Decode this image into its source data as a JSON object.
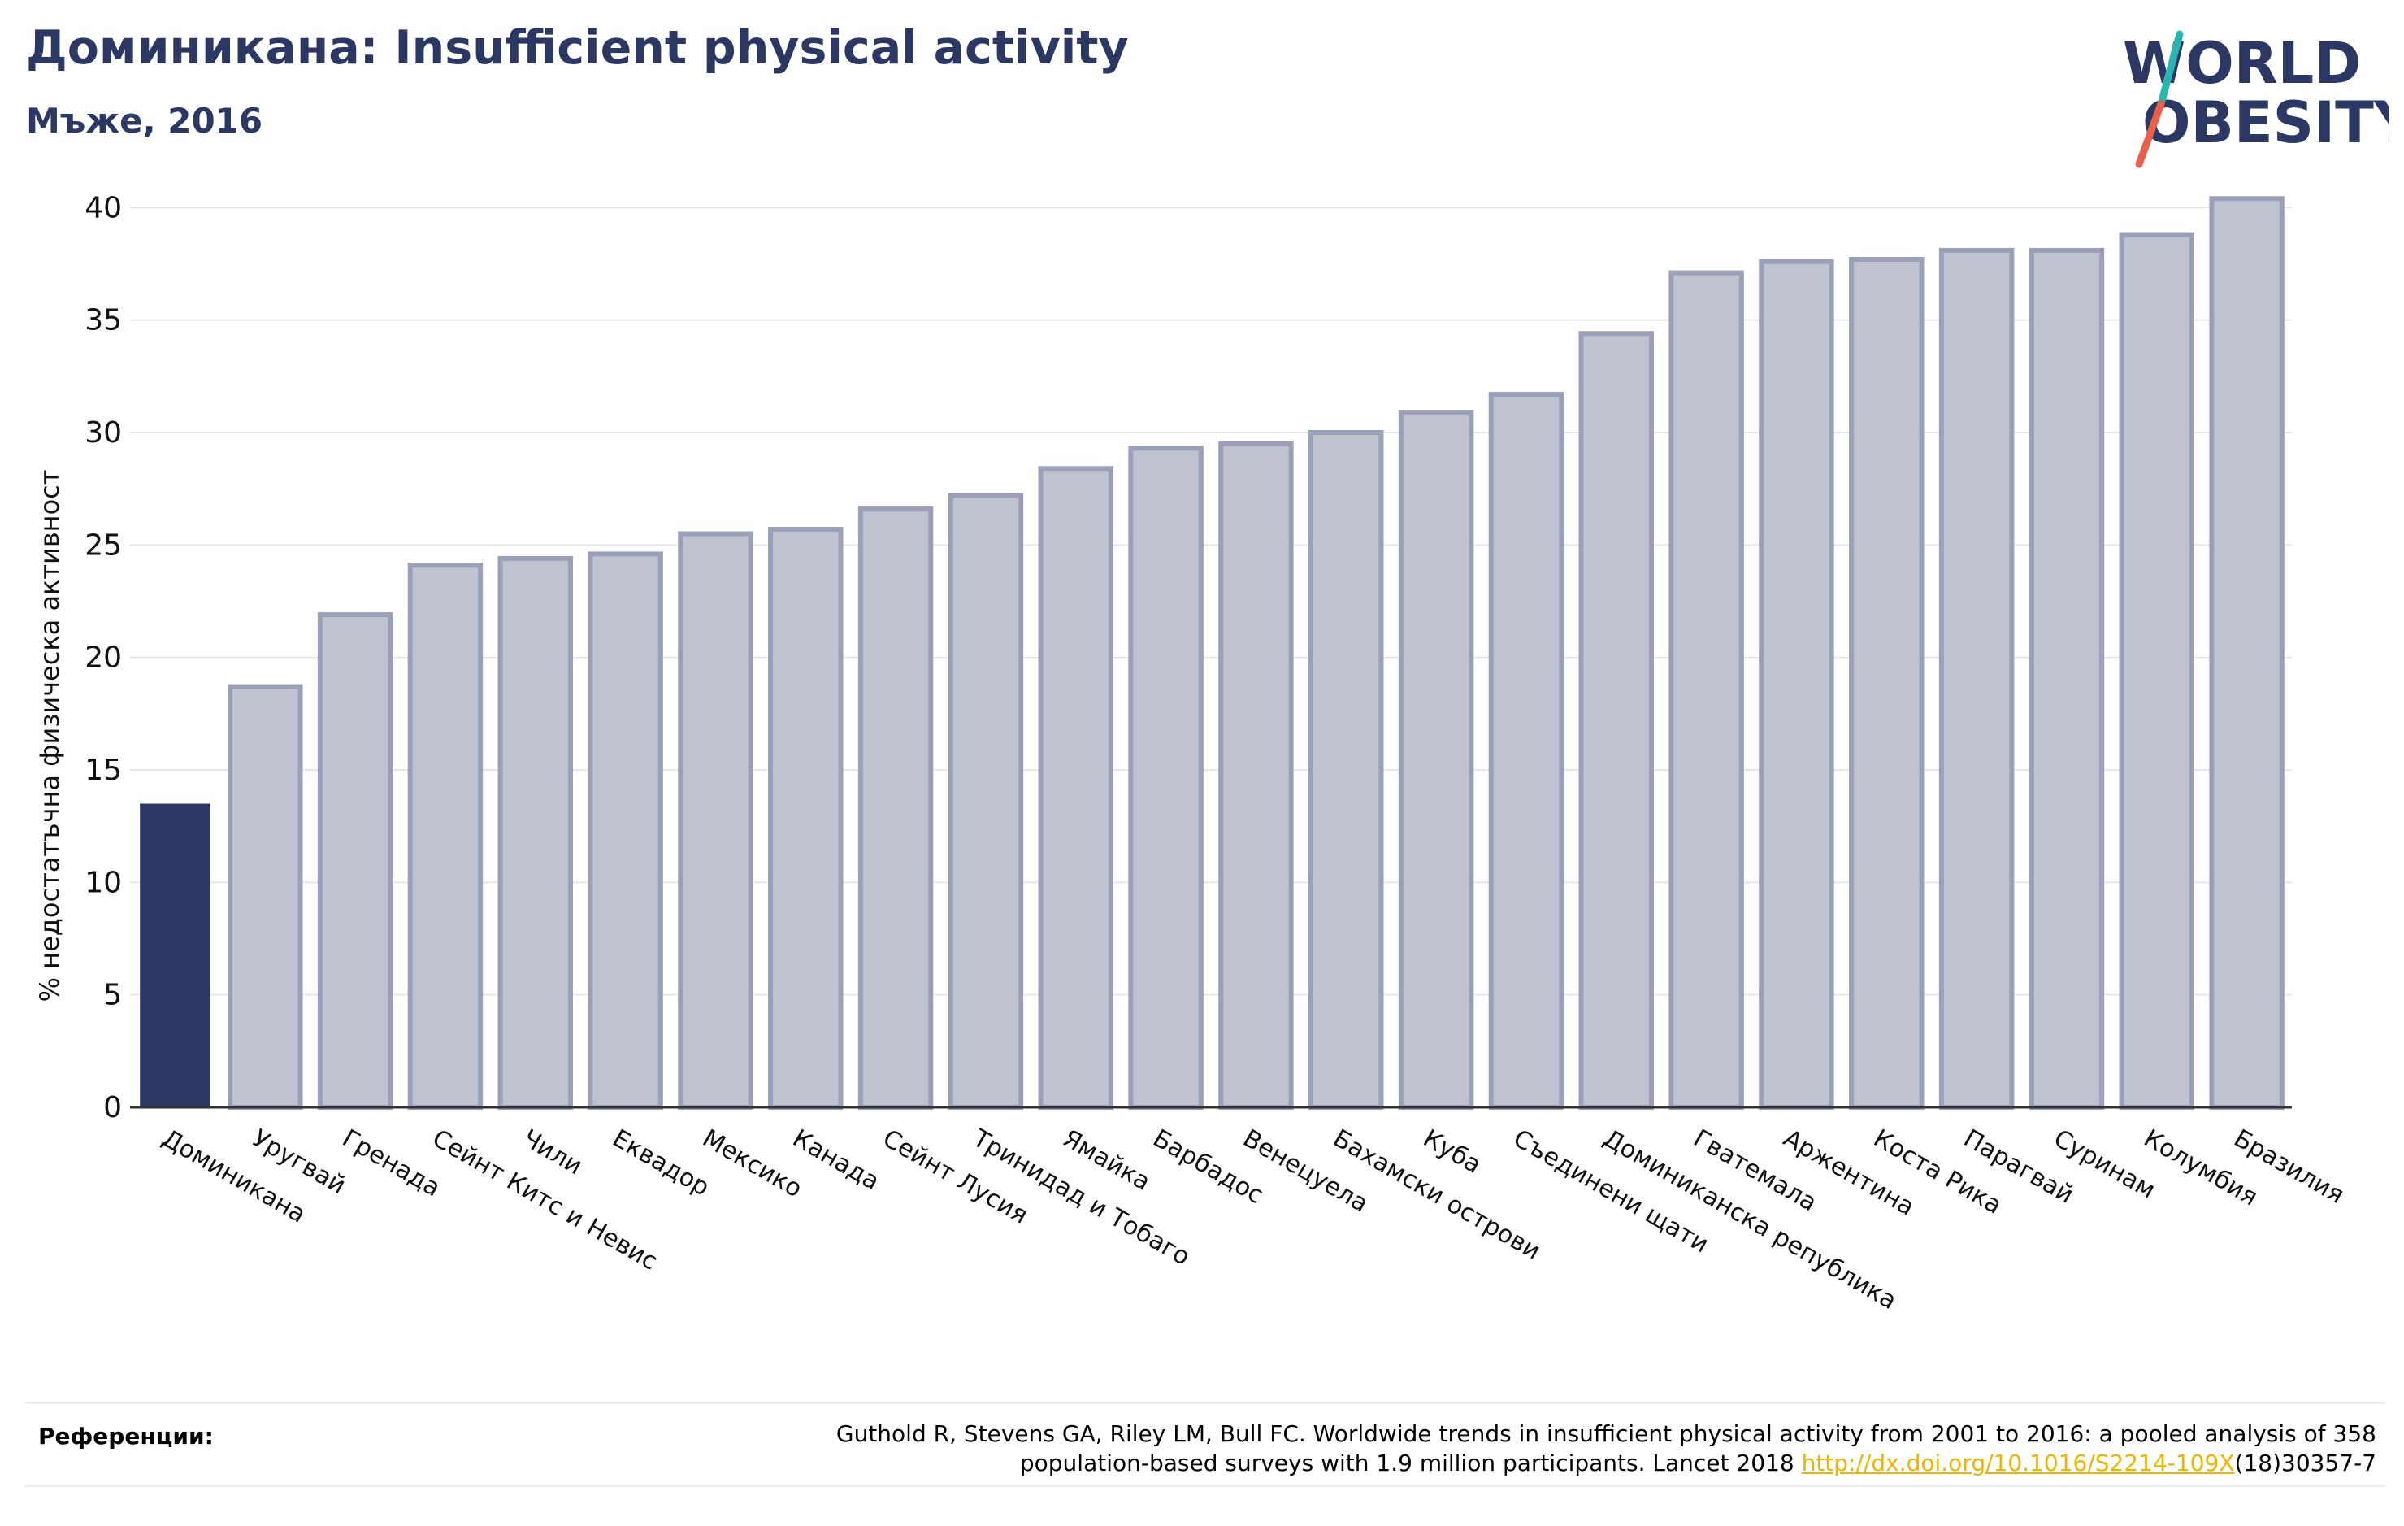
{
  "header": {
    "title": "Доминикана: Insufficient physical activity",
    "subtitle": "Мъже, 2016"
  },
  "logo": {
    "line1": "WORLD",
    "line2": "OBESITY",
    "colors": {
      "text": "#2c3864",
      "slash_top": "#2bb5b0",
      "slash_bottom": "#e8604c"
    }
  },
  "colors": {
    "highlight_bar": "#2c3864",
    "bar_fill": "#bfc2cf",
    "bar_stroke": "#9aa0b8",
    "grid": "#e6e6ea",
    "axis": "#333333",
    "link": "#f0b400"
  },
  "chart_data": {
    "type": "bar",
    "title": "Доминикана: Insufficient physical activity",
    "subtitle": "Мъже, 2016",
    "ylabel": "% недостатъчна физическа активност",
    "xlabel": "",
    "ylim": [
      0,
      42
    ],
    "yticks": [
      0,
      5,
      10,
      15,
      20,
      25,
      30,
      35,
      40
    ],
    "grid": true,
    "highlight_category": "Доминикана",
    "categories": [
      "Доминикана",
      "Уругвай",
      "Гренада",
      "Сейнт Китс и Невис",
      "Чили",
      "Еквадор",
      "Мексико",
      "Канада",
      "Сейнт Лусия",
      "Тринидад и Тобаго",
      "Ямайка",
      "Барбадос",
      "Венецуела",
      "Бахамски острови",
      "Куба",
      "Съединени щати",
      "Доминиканска република",
      "Гватемала",
      "Аржентина",
      "Коста Рика",
      "Парагвай",
      "Суринам",
      "Колумбия",
      "Бразилия"
    ],
    "values": [
      13.5,
      18.7,
      21.9,
      24.1,
      24.4,
      24.6,
      25.5,
      25.7,
      26.6,
      27.2,
      28.4,
      29.3,
      29.5,
      30.0,
      30.9,
      31.7,
      34.4,
      37.1,
      37.6,
      37.7,
      38.1,
      38.1,
      38.8,
      40.4
    ]
  },
  "references": {
    "label": "Референции:",
    "text_line1": "Guthold R, Stevens GA, Riley LM, Bull FC. Worldwide trends in insufficient physical activity from 2001 to 2016: a pooled analysis of 358",
    "text_line2_before": "population-based surveys with 1.9 million participants. Lancet 2018 ",
    "link_text": "http://dx.doi.org/10.1016/S2214-109X",
    "text_line2_after": "(18)30357-7"
  }
}
